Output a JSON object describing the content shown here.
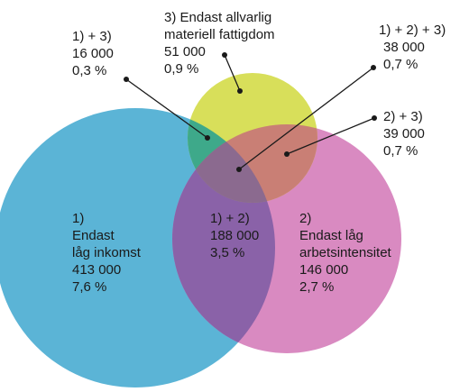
{
  "colors": {
    "low_income": "#5bb4d6",
    "low_work_intensity": "#d98ac1",
    "material_deprivation": "#d8df5a",
    "overlap_1_2": "#8a62a8",
    "overlap_1_3": "#3ea98a",
    "overlap_2_3": "#c97f75",
    "overlap_all": "#8b6a8f",
    "text": "#1a1a1a"
  },
  "regions": {
    "only_1": {
      "lines": [
        "1)",
        "Endast",
        "låg inkomst",
        "413 000",
        "7,6 %"
      ]
    },
    "only_2": {
      "lines": [
        "2)",
        "Endast låg",
        "arbetsintensitet",
        "146 000",
        "2,7 %"
      ]
    },
    "only_3": {
      "lines": [
        "3) Endast allvarlig",
        "materiell fattigdom",
        "51 000",
        "0,9 %"
      ]
    },
    "r_1_2": {
      "lines": [
        "1) + 2)",
        "188 000",
        "3,5 %"
      ]
    },
    "r_1_3": {
      "lines": [
        "1) + 3)",
        "16 000",
        "0,3 %"
      ]
    },
    "r_2_3": {
      "lines": [
        "2) + 3)",
        "39 000",
        "0,7 %"
      ]
    },
    "r_1_2_3": {
      "lines": [
        "1) + 2) + 3)",
        "38 000",
        "0,7 %"
      ]
    }
  }
}
